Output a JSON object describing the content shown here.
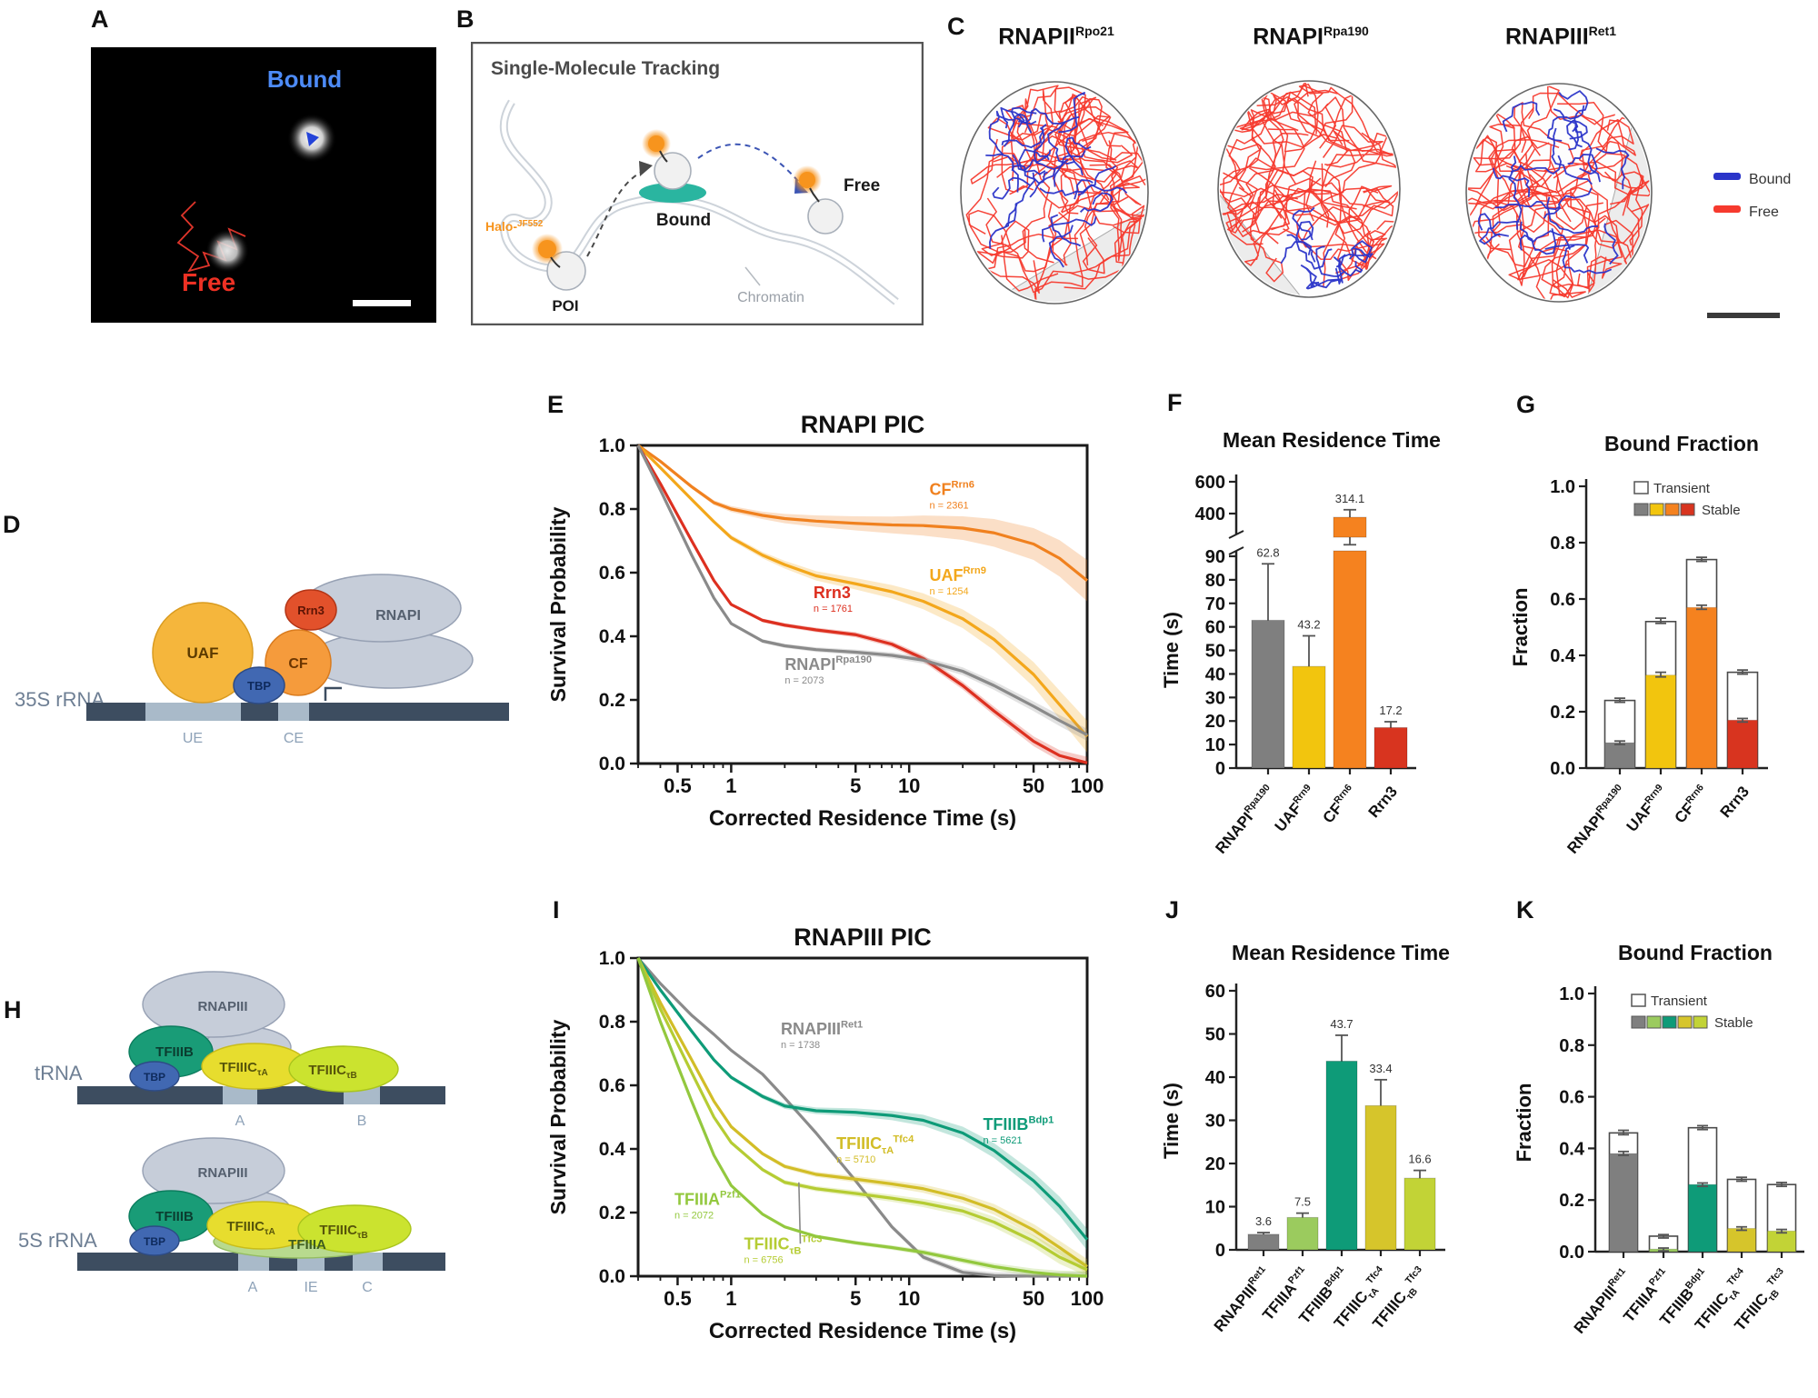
{
  "colors": {
    "gray_pol": "#c6cdd9",
    "gray_pol_stroke": "#97a1b4",
    "uaf": "#f5b63c",
    "uaf_stroke": "#d99b20",
    "cf": "#f59b3c",
    "cf_stroke": "#d97b1e",
    "rrn3": "#e2512b",
    "rrn3_stroke": "#b33516",
    "tbp": "#4168b2",
    "tbp_stroke": "#2d4b85",
    "tfiiib": "#199c77",
    "tfiiib_stroke": "#0c7d5e",
    "tfiiicA": "#e7dd2e",
    "tfiiicA_stroke": "#c9bd1a",
    "tfiiicB": "#cbe32f",
    "tfiiicB_stroke": "#a9c41c",
    "tfiiia": "#b8da8e",
    "tfiiia_stroke": "#94bd62",
    "dna": "#3d4d60",
    "dna_light": "#a9bac9",
    "element_label": "#8ea2b8",
    "gene_label": "#6e7f94",
    "bound_blue": "#2b35c9",
    "free_red": "#f63a2e",
    "halo_orange": "#f7941d",
    "teal_pad": "#2ab5a0",
    "bar_gray": "#7f7f7f",
    "bar_yellow": "#f2c50e",
    "bar_orange": "#f5821f",
    "bar_red": "#d8341f",
    "teal": "#0e9b78",
    "lgreen": "#9bcb5e",
    "mustard": "#d6c52b",
    "ygreen": "#c2d336"
  },
  "panels": {
    "a": {
      "letter": "A",
      "bound": "Bound",
      "free": "Free"
    },
    "b": {
      "letter": "B",
      "title": "Single-Molecule Tracking",
      "halo_base": "Halo-",
      "halo_sup": "JF552",
      "poi": "POI",
      "bound": "Bound",
      "free": "Free",
      "chromatin": "Chromatin"
    },
    "c": {
      "letter": "C",
      "titles": [
        {
          "base": "RNAPII",
          "sup": "Rpo21"
        },
        {
          "base": "RNAPI",
          "sup": "Rpa190"
        },
        {
          "base": "RNAPIII",
          "sup": "Ret1"
        }
      ],
      "legend_bound": "Bound",
      "legend_free": "Free"
    },
    "d": {
      "letter": "D",
      "gene": "35S rRNA",
      "uaf": "UAF",
      "tbp": "TBP",
      "cf": "CF",
      "rrn3": "Rrn3",
      "pol": "RNAPI",
      "ue": "UE",
      "ce": "CE"
    },
    "h": {
      "letter": "H",
      "gene1": "tRNA",
      "gene2": "5S rRNA",
      "pol": "RNAPIII",
      "tfiiib": "TFIIIB",
      "tbp": "TBP",
      "tfiiic": "TFIIIC",
      "tauA": "τA",
      "tauB": "τB",
      "tfiiia": "TFIIIA",
      "box_a": "A",
      "box_b": "B",
      "box_ie": "IE",
      "box_c": "C"
    },
    "e": {
      "letter": "E"
    },
    "f": {
      "letter": "F"
    },
    "g": {
      "letter": "G"
    },
    "i": {
      "letter": "I"
    },
    "j": {
      "letter": "J"
    },
    "k": {
      "letter": "K"
    }
  },
  "chart_data": [
    {
      "id": "E",
      "type": "line",
      "title": "RNAPI PIC",
      "xlabel": "Corrected Residence Time (s)",
      "ylabel": "Survival Probability",
      "xscale": "log",
      "xlim": [
        0.3,
        100
      ],
      "ylim": [
        0,
        1
      ],
      "grid": false,
      "xticks": [
        "0.5",
        "1",
        "5",
        "10",
        "50",
        "100"
      ],
      "yticks": [
        "1.0",
        "0.8",
        "0.6",
        "0.4",
        "0.2",
        "0.0"
      ],
      "x": [
        0.3,
        0.4,
        0.6,
        0.8,
        1,
        1.5,
        2,
        3,
        5,
        8,
        12,
        20,
        30,
        50,
        70,
        100
      ],
      "series": [
        {
          "base": "CF",
          "sup": "Rrn6",
          "n": "n = 2361",
          "color": "#f0811f",
          "label_at": [
            13,
            0.845
          ],
          "band": [
            0.005,
            0.06
          ],
          "y": [
            1,
            0.95,
            0.87,
            0.82,
            0.8,
            0.78,
            0.77,
            0.762,
            0.755,
            0.75,
            0.748,
            0.74,
            0.725,
            0.69,
            0.645,
            0.575
          ]
        },
        {
          "base": "UAF",
          "sup": "Rrn9",
          "n": "n = 1254",
          "color": "#f3a71b",
          "label_at": [
            13,
            0.575
          ],
          "band": [
            0.005,
            0.045
          ],
          "y": [
            1,
            0.93,
            0.83,
            0.76,
            0.71,
            0.655,
            0.625,
            0.59,
            0.565,
            0.54,
            0.51,
            0.455,
            0.39,
            0.28,
            0.185,
            0.085
          ]
        },
        {
          "base": "Rrn3",
          "n": "n = 1761",
          "color": "#dd3020",
          "label_at": [
            2.9,
            0.52
          ],
          "band": [
            0.004,
            0.015
          ],
          "y": [
            1,
            0.88,
            0.7,
            0.575,
            0.5,
            0.45,
            0.435,
            0.42,
            0.405,
            0.375,
            0.33,
            0.245,
            0.165,
            0.07,
            0.025,
            0.002
          ]
        },
        {
          "base": "RNAPI",
          "sup": "Rpa190",
          "n": "n = 2073",
          "color": "#8a8a8a",
          "label_at": [
            2.0,
            0.295
          ],
          "band": [
            0.004,
            0.015
          ],
          "y": [
            1,
            0.86,
            0.655,
            0.52,
            0.44,
            0.385,
            0.37,
            0.358,
            0.35,
            0.34,
            0.325,
            0.29,
            0.245,
            0.18,
            0.135,
            0.09
          ]
        }
      ]
    },
    {
      "id": "F",
      "type": "bar",
      "title": "Mean Residence Time",
      "ylabel": "Time (s)",
      "broken_axis": true,
      "upper_ticks": [
        "600",
        "400"
      ],
      "lower_ticks": [
        "90",
        "80",
        "70",
        "60",
        "50",
        "40",
        "30",
        "20",
        "10",
        "0"
      ],
      "categories": [
        {
          "base": "RNAPI",
          "sup": "Rpa190"
        },
        {
          "base": "UAF",
          "sup": "Rrn9"
        },
        {
          "base": "CF",
          "sup": "Rrn6"
        },
        {
          "base": "Rrn3"
        }
      ],
      "values": [
        62.8,
        43.2,
        314.1,
        17.2
      ],
      "value_labels": [
        "62.8",
        "43.2",
        "314.1",
        "17.2"
      ],
      "errors": [
        24,
        13,
        110,
        2.5
      ],
      "broken_bar_index": 2,
      "colors": [
        "#7f7f7f",
        "#f2c50e",
        "#f5821f",
        "#d8341f"
      ]
    },
    {
      "id": "G",
      "type": "stacked-bar",
      "title": "Bound Fraction",
      "ylabel": "Fraction",
      "yticks": [
        "1.0",
        "0.8",
        "0.6",
        "0.4",
        "0.2",
        "0.0"
      ],
      "ylim": [
        0,
        1
      ],
      "legend_transient": "Transient",
      "legend_stable": "Stable",
      "categories": [
        {
          "base": "RNAPI",
          "sup": "Rpa190"
        },
        {
          "base": "UAF",
          "sup": "Rrn9"
        },
        {
          "base": "CF",
          "sup": "Rrn6"
        },
        {
          "base": "Rrn3"
        }
      ],
      "total": [
        0.24,
        0.52,
        0.74,
        0.34
      ],
      "stable": [
        0.09,
        0.33,
        0.57,
        0.17
      ],
      "total_err": [
        0.008,
        0.012,
        0.008,
        0.008
      ],
      "stable_err": [
        0.006,
        0.01,
        0.008,
        0.006
      ],
      "colors": [
        "#7f7f7f",
        "#f2c50e",
        "#f5821f",
        "#d8341f"
      ]
    },
    {
      "id": "I",
      "type": "line",
      "title": "RNAPIII PIC",
      "xlabel": "Corrected Residence Time (s)",
      "ylabel": "Survival Probability",
      "xscale": "log",
      "xlim": [
        0.3,
        100
      ],
      "ylim": [
        0,
        1
      ],
      "grid": false,
      "xticks": [
        "0.5",
        "1",
        "5",
        "10",
        "50",
        "100"
      ],
      "yticks": [
        "1.0",
        "0.8",
        "0.6",
        "0.4",
        "0.2",
        "0.0"
      ],
      "x": [
        0.3,
        0.4,
        0.6,
        0.8,
        1,
        1.5,
        2,
        3,
        5,
        8,
        12,
        20,
        30,
        50,
        70,
        100
      ],
      "series": [
        {
          "base": "RNAPIII",
          "sup": "Ret1",
          "n": "n = 1738",
          "color": "#8a8a8a",
          "label_at": [
            1.9,
            0.76
          ],
          "band": [
            0.004,
            0.01
          ],
          "y": [
            1,
            0.92,
            0.82,
            0.76,
            0.71,
            0.635,
            0.56,
            0.45,
            0.3,
            0.155,
            0.06,
            0.012,
            0.002,
            0,
            0,
            0
          ]
        },
        {
          "base": "TFIIIB",
          "sup": "Bdp1",
          "n": "n = 5621",
          "color": "#0e9b78",
          "label_at": [
            26,
            0.46
          ],
          "band": [
            0.004,
            0.03
          ],
          "y": [
            1,
            0.9,
            0.77,
            0.68,
            0.625,
            0.565,
            0.535,
            0.52,
            0.515,
            0.505,
            0.49,
            0.45,
            0.395,
            0.3,
            0.22,
            0.115
          ]
        },
        {
          "base": "TFIIIC",
          "sub": "τA",
          "sup": "Tfc4",
          "n": "n = 5710",
          "color": "#d2bd27",
          "label_at": [
            3.9,
            0.4
          ],
          "band": [
            0.004,
            0.02
          ],
          "y": [
            1,
            0.86,
            0.68,
            0.55,
            0.47,
            0.385,
            0.345,
            0.32,
            0.305,
            0.29,
            0.275,
            0.245,
            0.21,
            0.145,
            0.09,
            0.03
          ]
        },
        {
          "base": "TFIIIC",
          "sub": "τB",
          "sup": "Tfc3",
          "n": "n = 6756",
          "color": "#b5cc33",
          "label_at": [
            1.18,
            0.085
          ],
          "arrow_to": [
            2.4,
            0.295
          ],
          "band": [
            0.004,
            0.02
          ],
          "y": [
            1,
            0.84,
            0.64,
            0.5,
            0.42,
            0.335,
            0.295,
            0.275,
            0.26,
            0.245,
            0.23,
            0.205,
            0.17,
            0.11,
            0.06,
            0.02
          ]
        },
        {
          "base": "TFIIIA",
          "sup": "Pzf1",
          "n": "n = 2072",
          "color": "#93c83e",
          "label_at": [
            0.48,
            0.225
          ],
          "band": [
            0.003,
            0.012
          ],
          "y": [
            1,
            0.8,
            0.55,
            0.38,
            0.285,
            0.195,
            0.155,
            0.125,
            0.105,
            0.09,
            0.075,
            0.05,
            0.03,
            0.012,
            0.004,
            0
          ]
        }
      ]
    },
    {
      "id": "J",
      "type": "bar",
      "title": "Mean Residence Time",
      "ylabel": "Time (s)",
      "yticks": [
        "60",
        "50",
        "40",
        "30",
        "20",
        "10",
        "0"
      ],
      "categories": [
        {
          "base": "RNAPIII",
          "sup": "Ret1"
        },
        {
          "base": "TFIIIA",
          "sup": "Pzf1"
        },
        {
          "base": "TFIIIB",
          "sup": "Bdp1"
        },
        {
          "base": "TFIIIC",
          "sub": "τA",
          "sup": "Tfc4"
        },
        {
          "base": "TFIIIC",
          "sub": "τB",
          "sup": "Tfc3"
        }
      ],
      "values": [
        3.6,
        7.5,
        43.7,
        33.4,
        16.6
      ],
      "value_labels": [
        "3.6",
        "7.5",
        "43.7",
        "33.4",
        "16.6"
      ],
      "errors": [
        0.4,
        1,
        6,
        6,
        1.8
      ],
      "colors": [
        "#7f7f7f",
        "#9bcb5e",
        "#0e9b78",
        "#d6c52b",
        "#c2d336"
      ]
    },
    {
      "id": "K",
      "type": "stacked-bar",
      "title": "Bound Fraction",
      "ylabel": "Fraction",
      "yticks": [
        "1.0",
        "0.8",
        "0.6",
        "0.4",
        "0.2",
        "0.0"
      ],
      "ylim": [
        0,
        1
      ],
      "legend_transient": "Transient",
      "legend_stable": "Stable",
      "categories": [
        {
          "base": "RNAPIII",
          "sup": "Ret1"
        },
        {
          "base": "TFIIIA",
          "sup": "Pzf1"
        },
        {
          "base": "TFIIIB",
          "sup": "Bdp1"
        },
        {
          "base": "TFIIIC",
          "sub": "τA",
          "sup": "Tfc4"
        },
        {
          "base": "TFIIIC",
          "sub": "τB",
          "sup": "Tfc3"
        }
      ],
      "total": [
        0.46,
        0.06,
        0.48,
        0.28,
        0.26
      ],
      "stable": [
        0.38,
        0.01,
        0.26,
        0.09,
        0.08
      ],
      "total_err": [
        0.01,
        0.006,
        0.008,
        0.008,
        0.008
      ],
      "stable_err": [
        0.008,
        0.004,
        0.006,
        0.006,
        0.006
      ],
      "colors": [
        "#7f7f7f",
        "#9bcb5e",
        "#0e9b78",
        "#d6c52b",
        "#c2d336"
      ]
    }
  ]
}
